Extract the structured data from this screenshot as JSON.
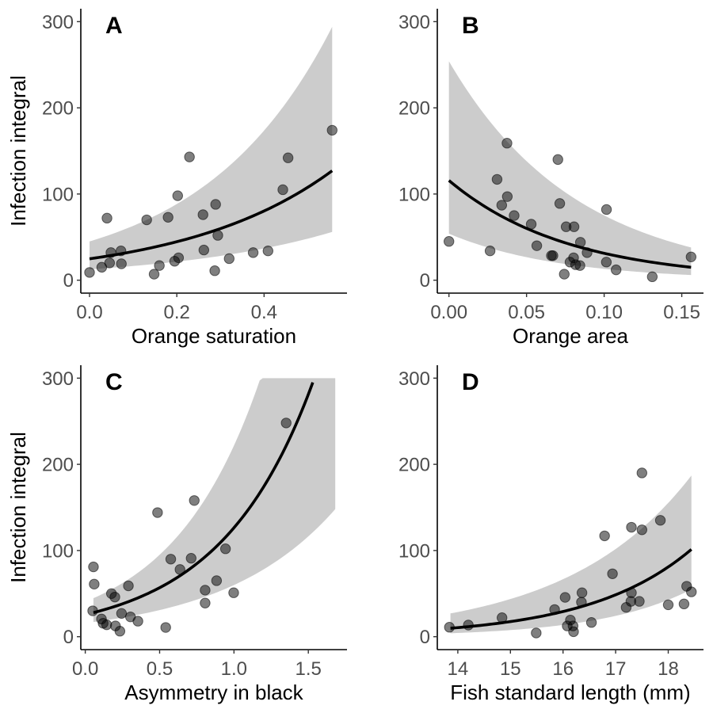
{
  "chart_data": [
    {
      "panel": "A",
      "type": "scatter",
      "xlabel": "Orange saturation",
      "ylabel": "Infection integral",
      "xlim": [
        -0.02,
        0.59
      ],
      "ylim": [
        -15,
        315
      ],
      "xticks": [
        0.0,
        0.2,
        0.4
      ],
      "xtick_labels": [
        "0.0",
        "0.2",
        "0.4"
      ],
      "yticks": [
        0,
        100,
        200,
        300
      ],
      "ytick_labels": [
        "0",
        "100",
        "200",
        "300"
      ],
      "grid": false,
      "points": [
        [
          0.0,
          9
        ],
        [
          0.028,
          15
        ],
        [
          0.04,
          72
        ],
        [
          0.046,
          20
        ],
        [
          0.049,
          32
        ],
        [
          0.072,
          34
        ],
        [
          0.073,
          19
        ],
        [
          0.131,
          70
        ],
        [
          0.148,
          7
        ],
        [
          0.16,
          17
        ],
        [
          0.18,
          73
        ],
        [
          0.195,
          22
        ],
        [
          0.204,
          26
        ],
        [
          0.202,
          98
        ],
        [
          0.229,
          143
        ],
        [
          0.26,
          76
        ],
        [
          0.262,
          35
        ],
        [
          0.289,
          88
        ],
        [
          0.294,
          52
        ],
        [
          0.287,
          11
        ],
        [
          0.32,
          25
        ],
        [
          0.375,
          32
        ],
        [
          0.409,
          34
        ],
        [
          0.443,
          105
        ],
        [
          0.455,
          142
        ],
        [
          0.556,
          174
        ]
      ],
      "fit": {
        "model": "exponential",
        "x_range": [
          0.0,
          0.556
        ],
        "fit_start": 24.8,
        "fit_end": 127,
        "ci_lower_start": 12.6,
        "ci_lower_end": 56,
        "ci_upper_start": 45,
        "ci_upper_end": 294
      }
    },
    {
      "panel": "B",
      "type": "scatter",
      "xlabel": "Orange area",
      "ylabel": "",
      "xlim": [
        -0.0075,
        0.164
      ],
      "ylim": [
        -15,
        315
      ],
      "xticks": [
        0.0,
        0.05,
        0.1,
        0.15
      ],
      "xtick_labels": [
        "0.00",
        "0.05",
        "0.10",
        "0.15"
      ],
      "yticks": [
        0,
        100,
        200,
        300
      ],
      "ytick_labels": [
        "0",
        "100",
        "200",
        "300"
      ],
      "grid": false,
      "points": [
        [
          0.0,
          45
        ],
        [
          0.0265,
          34
        ],
        [
          0.031,
          117
        ],
        [
          0.034,
          87
        ],
        [
          0.0374,
          159
        ],
        [
          0.0376,
          97
        ],
        [
          0.042,
          75
        ],
        [
          0.053,
          65
        ],
        [
          0.0566,
          40
        ],
        [
          0.066,
          28.5
        ],
        [
          0.067,
          28.5
        ],
        [
          0.0702,
          140
        ],
        [
          0.0714,
          89
        ],
        [
          0.0743,
          7
        ],
        [
          0.0755,
          62
        ],
        [
          0.0806,
          62
        ],
        [
          0.078,
          21
        ],
        [
          0.0803,
          26
        ],
        [
          0.0816,
          18
        ],
        [
          0.0844,
          17
        ],
        [
          0.0847,
          44
        ],
        [
          0.089,
          32
        ],
        [
          0.1015,
          82
        ],
        [
          0.1014,
          21
        ],
        [
          0.1077,
          12
        ],
        [
          0.131,
          4
        ],
        [
          0.156,
          27
        ]
      ],
      "fit": {
        "model": "exponential",
        "x_range": [
          0.0,
          0.156
        ],
        "fit_start": 115.7,
        "fit_end": 15,
        "ci_lower_start": 54,
        "ci_lower_end": 6,
        "ci_upper_start": 254,
        "ci_upper_end": 38
      }
    },
    {
      "panel": "C",
      "type": "scatter",
      "xlabel": "Asymmetry in black",
      "ylabel": "Infection integral",
      "xlim": [
        -0.03,
        1.76
      ],
      "ylim": [
        -15,
        315
      ],
      "xticks": [
        0.0,
        0.5,
        1.0,
        1.5
      ],
      "xtick_labels": [
        "0.0",
        "0.5",
        "1.0",
        "1.5"
      ],
      "yticks": [
        0,
        100,
        200,
        300
      ],
      "ytick_labels": [
        "0",
        "100",
        "200",
        "300"
      ],
      "grid": false,
      "points": [
        [
          0.055,
          81
        ],
        [
          0.06,
          61
        ],
        [
          0.05,
          30
        ],
        [
          0.109,
          20.5
        ],
        [
          0.12,
          15.6
        ],
        [
          0.144,
          13.8
        ],
        [
          0.176,
          50
        ],
        [
          0.199,
          46
        ],
        [
          0.203,
          12.5
        ],
        [
          0.233,
          6.4
        ],
        [
          0.244,
          27
        ],
        [
          0.29,
          59
        ],
        [
          0.304,
          23
        ],
        [
          0.354,
          18
        ],
        [
          0.486,
          144
        ],
        [
          0.541,
          10.7
        ],
        [
          0.575,
          90
        ],
        [
          0.637,
          78
        ],
        [
          0.712,
          91
        ],
        [
          0.733,
          158
        ],
        [
          0.806,
          54
        ],
        [
          0.806,
          39
        ],
        [
          0.883,
          65
        ],
        [
          0.943,
          102
        ],
        [
          0.998,
          51
        ],
        [
          1.351,
          248
        ]
      ],
      "fit": {
        "model": "exponential",
        "x_range": [
          0.055,
          1.53
        ],
        "fit_start": 27.9,
        "fit_end": 295,
        "ci_x_range": [
          0.055,
          1.681
        ],
        "ci_lower_start": 17.1,
        "ci_lower_end": 148,
        "ci_upper_start": 44.7,
        "ci_upper_rate": 1.695,
        "ci_upper_clip": 300
      }
    },
    {
      "panel": "D",
      "type": "scatter",
      "xlabel": "Fish standard length (mm)",
      "ylabel": "",
      "xlim": [
        13.61,
        18.67
      ],
      "ylim": [
        -15,
        315
      ],
      "xticks": [
        14,
        15,
        16,
        17,
        18
      ],
      "xtick_labels": [
        "14",
        "15",
        "16",
        "17",
        "18"
      ],
      "yticks": [
        0,
        100,
        200,
        300
      ],
      "ytick_labels": [
        "0",
        "100",
        "200",
        "300"
      ],
      "grid": false,
      "points": [
        [
          13.84,
          11
        ],
        [
          14.2,
          13.5
        ],
        [
          14.84,
          22
        ],
        [
          15.49,
          4.3
        ],
        [
          15.84,
          31.5
        ],
        [
          16.04,
          45.6
        ],
        [
          16.08,
          12.5
        ],
        [
          16.14,
          19.3
        ],
        [
          16.19,
          12.5
        ],
        [
          16.2,
          5.8
        ],
        [
          16.35,
          40
        ],
        [
          16.36,
          51
        ],
        [
          16.54,
          16.5
        ],
        [
          16.79,
          117
        ],
        [
          16.94,
          73
        ],
        [
          17.2,
          34
        ],
        [
          17.29,
          41
        ],
        [
          17.3,
          51
        ],
        [
          17.3,
          127
        ],
        [
          17.45,
          41
        ],
        [
          17.5,
          124
        ],
        [
          17.5,
          190
        ],
        [
          17.85,
          135
        ],
        [
          18.0,
          37
        ],
        [
          18.3,
          38
        ],
        [
          18.35,
          58.5
        ],
        [
          18.44,
          52
        ]
      ],
      "fit": {
        "model": "exponential",
        "x_range": [
          13.86,
          18.44
        ],
        "fit_start": 9.8,
        "fit_end": 101.3,
        "ci_lower_start": 4,
        "ci_lower_end": 55,
        "ci_upper_start": 27,
        "ci_upper_end": 187
      }
    }
  ]
}
